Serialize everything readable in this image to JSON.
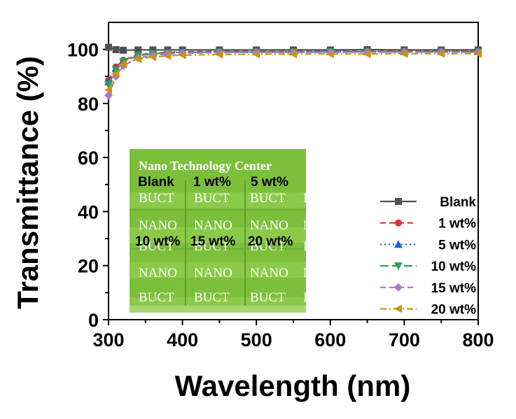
{
  "chart_data": {
    "type": "line",
    "xlabel": "Wavelength (nm)",
    "ylabel": "Transmittance (%)",
    "xlim": [
      300,
      800
    ],
    "ylim": [
      0,
      110
    ],
    "xticks": [
      300,
      400,
      500,
      600,
      700,
      800
    ],
    "yticks": [
      0,
      20,
      40,
      60,
      80,
      100
    ],
    "x": [
      300,
      310,
      320,
      340,
      360,
      380,
      400,
      450,
      500,
      550,
      600,
      650,
      700,
      750,
      800
    ],
    "series": [
      {
        "name": "Blank",
        "color": "#505050",
        "marker": "square",
        "dash": "solid",
        "values": [
          100.8,
          99.9,
          99.7,
          99.8,
          99.8,
          99.8,
          99.8,
          99.8,
          99.8,
          99.8,
          99.8,
          99.9,
          99.8,
          99.8,
          99.8
        ]
      },
      {
        "name": "1 wt%",
        "color": "#e03030",
        "marker": "circle",
        "dash": "dash",
        "values": [
          88.5,
          93.5,
          96.0,
          98.0,
          98.6,
          98.9,
          99.1,
          99.2,
          99.2,
          99.2,
          99.2,
          99.3,
          99.3,
          99.3,
          99.3
        ]
      },
      {
        "name": "5 wt%",
        "color": "#1f5fd8",
        "marker": "triangle-up",
        "dash": "dot",
        "values": [
          88.0,
          93.0,
          95.8,
          97.9,
          98.5,
          98.8,
          99.0,
          99.1,
          99.1,
          99.1,
          99.2,
          99.2,
          99.2,
          99.2,
          99.2
        ]
      },
      {
        "name": "10 wt%",
        "color": "#2e9e5e",
        "marker": "triangle-down",
        "dash": "dashlong",
        "values": [
          87.0,
          92.5,
          95.5,
          97.7,
          98.4,
          98.7,
          98.9,
          99.0,
          99.0,
          99.0,
          99.1,
          99.1,
          99.1,
          99.1,
          99.1
        ]
      },
      {
        "name": "15 wt%",
        "color": "#b070e0",
        "marker": "diamond",
        "dash": "dash",
        "values": [
          83.0,
          90.0,
          94.0,
          96.8,
          97.8,
          98.3,
          98.6,
          98.8,
          98.9,
          98.9,
          98.9,
          99.0,
          99.0,
          99.0,
          99.0
        ]
      },
      {
        "name": "20 wt%",
        "color": "#c8960a",
        "marker": "triangle-left",
        "dash": "dashdot",
        "values": [
          85.0,
          91.0,
          94.5,
          96.5,
          97.2,
          97.6,
          97.9,
          98.1,
          98.2,
          98.3,
          98.3,
          98.3,
          98.4,
          98.4,
          98.4
        ]
      }
    ],
    "legend_position": "center-right",
    "grid": false
  },
  "inset_photo": {
    "title": "Nano Technology Center",
    "row1_labels": [
      "Blank",
      "1 wt%",
      "5 wt%"
    ],
    "row2_labels": [
      "10 wt%",
      "15 wt%",
      "20 wt%"
    ],
    "watermark_words": [
      "BUCT",
      "NANO"
    ],
    "background_color": "#7cbf3a"
  }
}
